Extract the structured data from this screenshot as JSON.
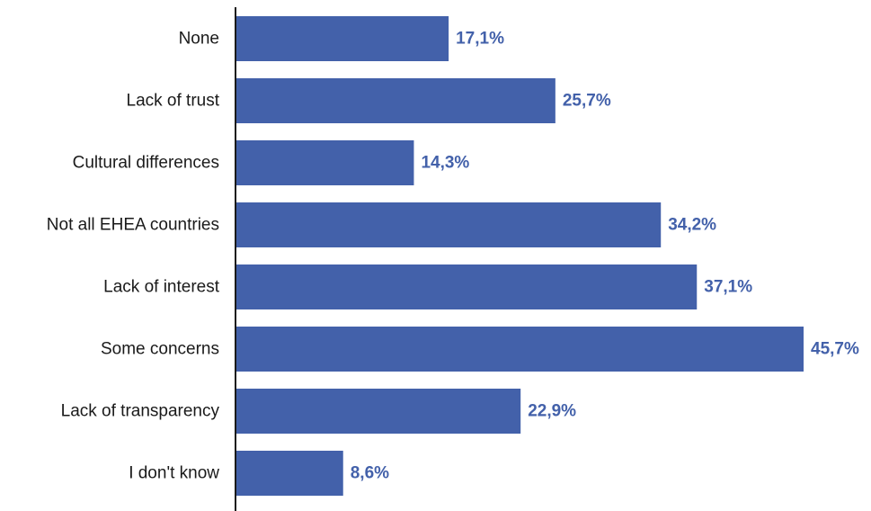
{
  "chart_data": {
    "type": "bar",
    "orientation": "horizontal",
    "categories": [
      "None",
      "Lack of trust",
      "Cultural differences",
      "Not all EHEA countries",
      "Lack of interest",
      "Some concerns",
      "Lack of transparency",
      "I don't know"
    ],
    "values": [
      17.1,
      25.7,
      14.3,
      34.2,
      37.1,
      45.7,
      22.9,
      8.6
    ],
    "value_labels": [
      "17,1%",
      "25,7%",
      "14,3%",
      "34,2%",
      "37,1%",
      "45,7%",
      "22,9%",
      "8,6%"
    ],
    "xlim": [
      0,
      45.7
    ],
    "grid": false,
    "legend": "none",
    "colors": {
      "bar": "#4361AA",
      "value_text": "#4361AA",
      "axis": "#1a1a1a"
    }
  }
}
